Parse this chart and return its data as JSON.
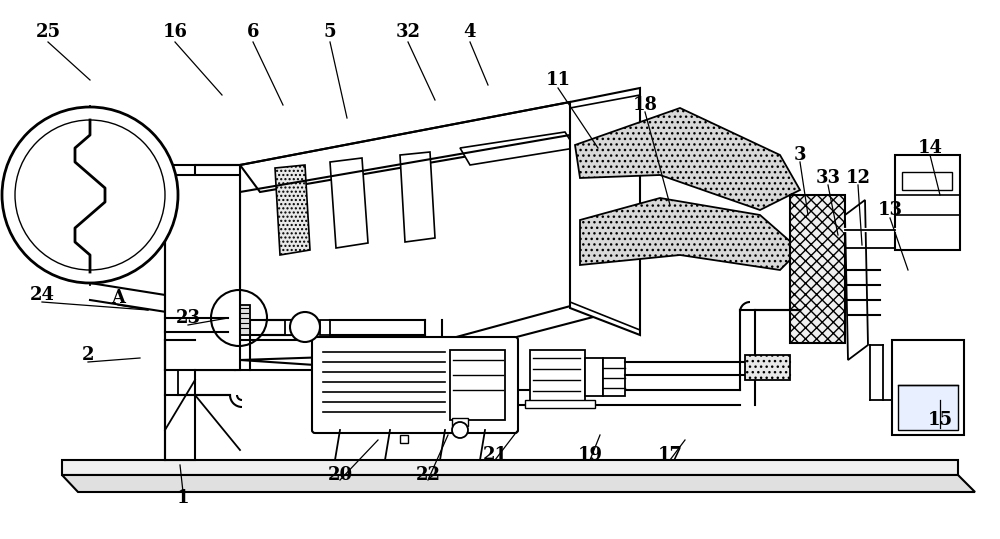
{
  "bg_color": "#ffffff",
  "line_color": "#000000",
  "figsize": [
    10.0,
    5.39
  ],
  "dpi": 100,
  "labels": [
    [
      "25",
      48,
      32
    ],
    [
      "16",
      175,
      32
    ],
    [
      "6",
      253,
      32
    ],
    [
      "5",
      330,
      32
    ],
    [
      "32",
      408,
      32
    ],
    [
      "4",
      470,
      32
    ],
    [
      "11",
      558,
      80
    ],
    [
      "18",
      645,
      105
    ],
    [
      "3",
      800,
      155
    ],
    [
      "33",
      828,
      178
    ],
    [
      "12",
      858,
      178
    ],
    [
      "13",
      890,
      210
    ],
    [
      "14",
      930,
      148
    ],
    [
      "15",
      940,
      420
    ],
    [
      "2",
      88,
      355
    ],
    [
      "23",
      188,
      318
    ],
    [
      "A",
      118,
      298
    ],
    [
      "24",
      42,
      295
    ],
    [
      "1",
      183,
      498
    ],
    [
      "20",
      340,
      475
    ],
    [
      "22",
      428,
      475
    ],
    [
      "21",
      495,
      455
    ],
    [
      "19",
      590,
      455
    ],
    [
      "17",
      670,
      455
    ]
  ],
  "leader_lines": [
    [
      48,
      42,
      90,
      80
    ],
    [
      175,
      42,
      222,
      95
    ],
    [
      253,
      42,
      283,
      105
    ],
    [
      330,
      42,
      347,
      118
    ],
    [
      408,
      42,
      435,
      100
    ],
    [
      470,
      42,
      488,
      85
    ],
    [
      558,
      88,
      598,
      148
    ],
    [
      645,
      112,
      670,
      205
    ],
    [
      800,
      162,
      808,
      215
    ],
    [
      828,
      185,
      838,
      235
    ],
    [
      858,
      185,
      862,
      245
    ],
    [
      890,
      218,
      908,
      270
    ],
    [
      930,
      155,
      940,
      195
    ],
    [
      940,
      428,
      940,
      400
    ],
    [
      88,
      362,
      140,
      358
    ],
    [
      188,
      325,
      228,
      318
    ],
    [
      118,
      305,
      148,
      310
    ],
    [
      42,
      302,
      148,
      310
    ],
    [
      183,
      492,
      180,
      465
    ],
    [
      340,
      480,
      378,
      440
    ],
    [
      428,
      480,
      448,
      435
    ],
    [
      495,
      460,
      518,
      430
    ],
    [
      590,
      460,
      600,
      435
    ],
    [
      670,
      460,
      685,
      440
    ]
  ]
}
